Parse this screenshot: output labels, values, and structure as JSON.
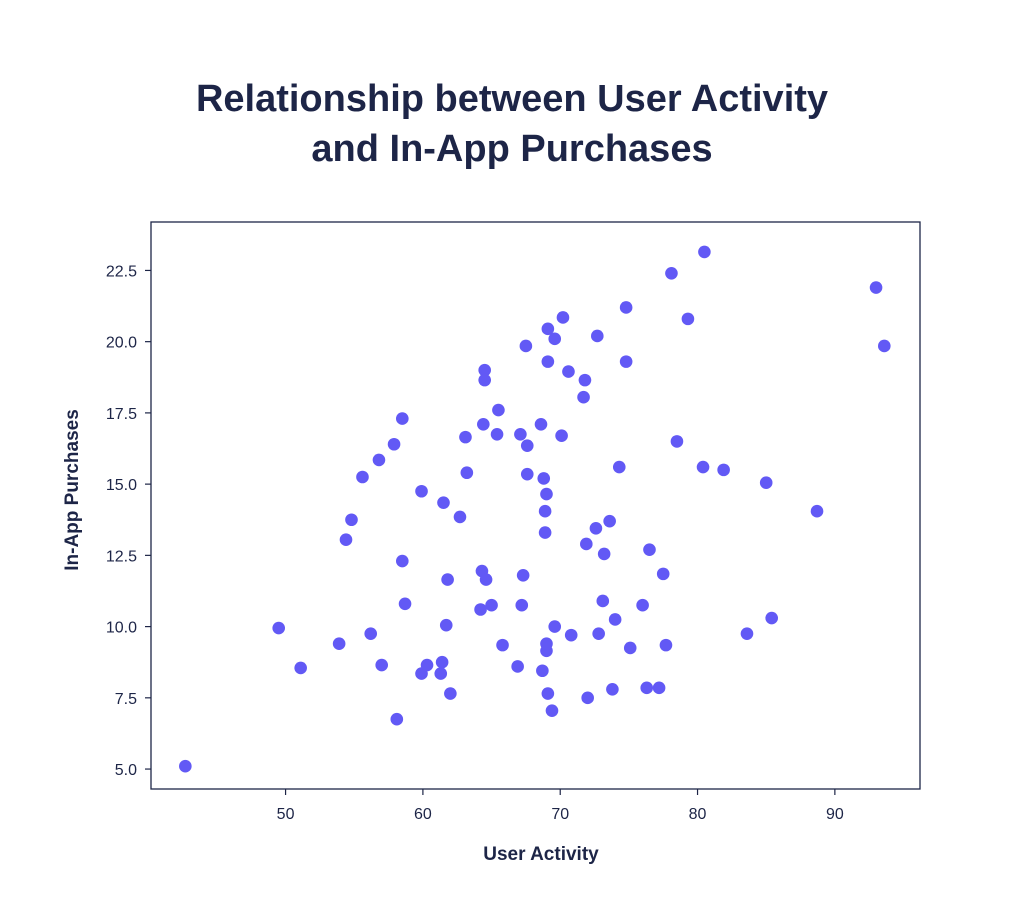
{
  "chart_data": {
    "type": "scatter",
    "title_lines": [
      "Relationship between User Activity",
      "and In-App Purchases"
    ],
    "xlabel": "User Activity",
    "ylabel": "In-App Purchases",
    "xlim": [
      40.2,
      96.2
    ],
    "ylim": [
      4.3,
      24.2
    ],
    "xticks": [
      50,
      60,
      70,
      80,
      90
    ],
    "yticks": [
      5.0,
      7.5,
      10.0,
      12.5,
      15.0,
      17.5,
      20.0,
      22.5
    ],
    "grid": false,
    "marker_color": "#6259f5",
    "points": [
      [
        42.7,
        5.1
      ],
      [
        49.5,
        9.95
      ],
      [
        51.1,
        8.55
      ],
      [
        53.9,
        9.4
      ],
      [
        54.4,
        13.05
      ],
      [
        54.8,
        13.75
      ],
      [
        55.6,
        15.25
      ],
      [
        56.2,
        9.75
      ],
      [
        56.8,
        15.85
      ],
      [
        57.0,
        8.65
      ],
      [
        57.9,
        16.4
      ],
      [
        58.1,
        6.75
      ],
      [
        58.5,
        17.3
      ],
      [
        58.5,
        12.3
      ],
      [
        58.7,
        10.8
      ],
      [
        59.9,
        8.35
      ],
      [
        59.9,
        14.75
      ],
      [
        60.3,
        8.65
      ],
      [
        61.3,
        8.35
      ],
      [
        61.4,
        8.75
      ],
      [
        61.5,
        14.35
      ],
      [
        61.7,
        10.05
      ],
      [
        61.8,
        11.65
      ],
      [
        62.0,
        7.65
      ],
      [
        62.7,
        13.85
      ],
      [
        63.1,
        16.65
      ],
      [
        63.2,
        15.4
      ],
      [
        64.2,
        10.6
      ],
      [
        64.3,
        11.95
      ],
      [
        64.4,
        17.1
      ],
      [
        64.5,
        19.0
      ],
      [
        64.5,
        18.65
      ],
      [
        64.6,
        11.65
      ],
      [
        65.0,
        10.75
      ],
      [
        65.4,
        16.75
      ],
      [
        65.5,
        17.6
      ],
      [
        65.8,
        9.35
      ],
      [
        66.9,
        8.6
      ],
      [
        67.1,
        16.75
      ],
      [
        67.2,
        10.75
      ],
      [
        67.3,
        11.8
      ],
      [
        67.5,
        19.85
      ],
      [
        67.6,
        15.35
      ],
      [
        67.6,
        16.35
      ],
      [
        68.6,
        17.1
      ],
      [
        68.7,
        8.45
      ],
      [
        68.8,
        15.2
      ],
      [
        68.9,
        14.05
      ],
      [
        68.9,
        13.3
      ],
      [
        69.0,
        14.65
      ],
      [
        69.0,
        9.15
      ],
      [
        69.0,
        9.4
      ],
      [
        69.1,
        7.65
      ],
      [
        69.1,
        20.45
      ],
      [
        69.1,
        19.3
      ],
      [
        69.4,
        7.05
      ],
      [
        69.6,
        20.1
      ],
      [
        69.6,
        10.0
      ],
      [
        70.1,
        16.7
      ],
      [
        70.2,
        20.85
      ],
      [
        70.6,
        18.95
      ],
      [
        70.8,
        9.7
      ],
      [
        71.7,
        18.05
      ],
      [
        71.8,
        18.65
      ],
      [
        71.9,
        12.9
      ],
      [
        72.0,
        7.5
      ],
      [
        72.6,
        13.45
      ],
      [
        72.7,
        20.2
      ],
      [
        72.8,
        9.75
      ],
      [
        73.1,
        10.9
      ],
      [
        73.2,
        12.55
      ],
      [
        73.6,
        13.7
      ],
      [
        73.8,
        7.8
      ],
      [
        74.0,
        10.25
      ],
      [
        74.3,
        15.6
      ],
      [
        74.8,
        21.2
      ],
      [
        74.8,
        19.3
      ],
      [
        75.1,
        9.25
      ],
      [
        76.0,
        10.75
      ],
      [
        76.3,
        7.85
      ],
      [
        76.5,
        12.7
      ],
      [
        77.2,
        7.85
      ],
      [
        77.5,
        11.85
      ],
      [
        77.7,
        9.35
      ],
      [
        78.1,
        22.4
      ],
      [
        78.5,
        16.5
      ],
      [
        79.3,
        20.8
      ],
      [
        80.4,
        15.6
      ],
      [
        80.5,
        23.15
      ],
      [
        81.9,
        15.5
      ],
      [
        83.6,
        9.75
      ],
      [
        85.0,
        15.05
      ],
      [
        85.4,
        10.3
      ],
      [
        88.7,
        14.05
      ],
      [
        93.0,
        21.9
      ],
      [
        93.6,
        19.85
      ]
    ]
  }
}
